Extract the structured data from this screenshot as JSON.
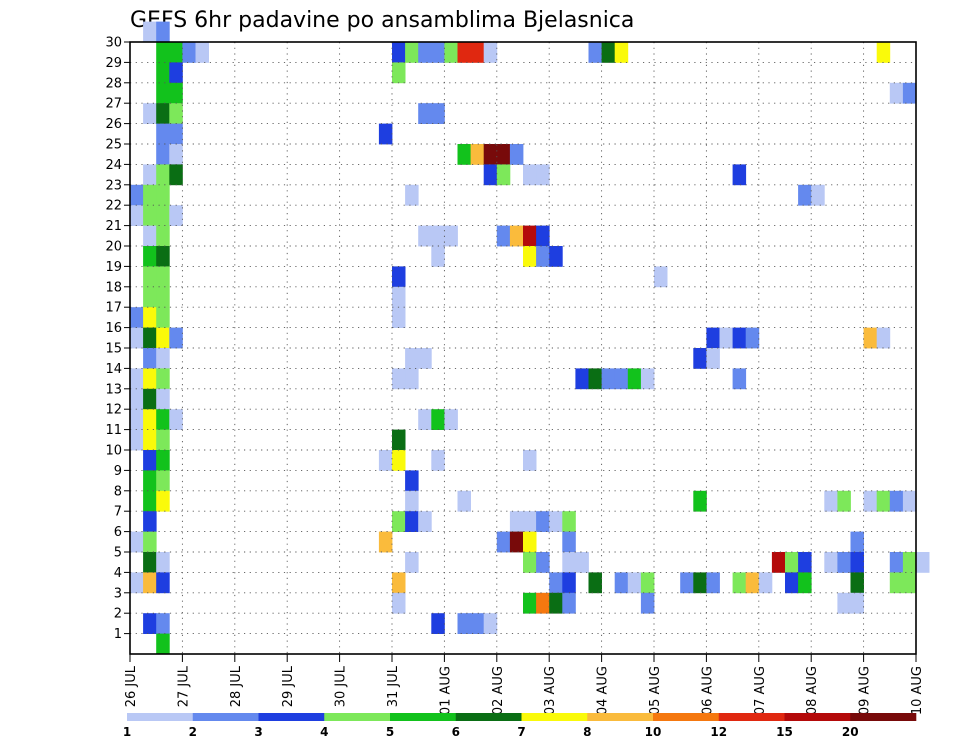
{
  "chart_data": {
    "type": "heatmap",
    "title": "GEFS 6hr padavine po ansamblima Bjelasnica",
    "xlabel": "",
    "ylabel": "",
    "x_ticks": [
      "26 JUL",
      "27 JUL",
      "28 JUL",
      "29 JUL",
      "30 JUL",
      "31 JUL",
      "01 AUG",
      "02 AUG",
      "03 AUG",
      "04 AUG",
      "05 AUG",
      "06 AUG",
      "07 AUG",
      "08 AUG",
      "09 AUG",
      "10 AUG"
    ],
    "y_ticks": [
      1,
      2,
      3,
      4,
      5,
      6,
      7,
      8,
      9,
      10,
      11,
      12,
      13,
      14,
      15,
      16,
      17,
      18,
      19,
      20,
      21,
      22,
      23,
      24,
      25,
      26,
      27,
      28,
      29,
      30
    ],
    "y_range": [
      0,
      30
    ],
    "time_step_hours": 6,
    "grid": true,
    "colorbar": {
      "position": "bottom",
      "levels": [
        "1",
        "2",
        "3",
        "4",
        "5",
        "6",
        "7",
        "8",
        "10",
        "12",
        "15",
        "20"
      ],
      "colors": [
        "#b9c8f5",
        "#6489ee",
        "#1e3ee0",
        "#7de85a",
        "#12c21c",
        "#0a6e14",
        "#fafa0a",
        "#fabb3c",
        "#f5780f",
        "#e02810",
        "#b40a0a",
        "#780a0a"
      ]
    },
    "cells": [
      {
        "t": 1,
        "m": 30,
        "c": 0
      },
      {
        "t": 2,
        "m": 30,
        "c": 1
      },
      {
        "t": 2,
        "m": 29,
        "c": 4
      },
      {
        "t": 3,
        "m": 29,
        "c": 4
      },
      {
        "t": 4,
        "m": 29,
        "c": 1
      },
      {
        "t": 5,
        "m": 29,
        "c": 0
      },
      {
        "t": 20,
        "m": 29,
        "c": 2
      },
      {
        "t": 21,
        "m": 29,
        "c": 3
      },
      {
        "t": 22,
        "m": 29,
        "c": 1
      },
      {
        "t": 23,
        "m": 29,
        "c": 1
      },
      {
        "t": 24,
        "m": 29,
        "c": 3
      },
      {
        "t": 25,
        "m": 29,
        "c": 9
      },
      {
        "t": 26,
        "m": 29,
        "c": 9
      },
      {
        "t": 27,
        "m": 29,
        "c": 0
      },
      {
        "t": 35,
        "m": 29,
        "c": 1
      },
      {
        "t": 36,
        "m": 29,
        "c": 5
      },
      {
        "t": 37,
        "m": 29,
        "c": 6
      },
      {
        "t": 57,
        "m": 29,
        "c": 6
      },
      {
        "t": 2,
        "m": 28,
        "c": 4
      },
      {
        "t": 3,
        "m": 28,
        "c": 2
      },
      {
        "t": 20,
        "m": 28,
        "c": 3
      },
      {
        "t": 2,
        "m": 27,
        "c": 4
      },
      {
        "t": 3,
        "m": 27,
        "c": 4
      },
      {
        "t": 58,
        "m": 27,
        "c": 0
      },
      {
        "t": 59,
        "m": 27,
        "c": 1
      },
      {
        "t": 1,
        "m": 26,
        "c": 0
      },
      {
        "t": 2,
        "m": 26,
        "c": 5
      },
      {
        "t": 3,
        "m": 26,
        "c": 3
      },
      {
        "t": 22,
        "m": 26,
        "c": 1
      },
      {
        "t": 23,
        "m": 26,
        "c": 1
      },
      {
        "t": 2,
        "m": 25,
        "c": 1
      },
      {
        "t": 3,
        "m": 25,
        "c": 1
      },
      {
        "t": 19,
        "m": 25,
        "c": 2
      },
      {
        "t": 2,
        "m": 24,
        "c": 1
      },
      {
        "t": 3,
        "m": 24,
        "c": 0
      },
      {
        "t": 25,
        "m": 24,
        "c": 4
      },
      {
        "t": 26,
        "m": 24,
        "c": 7
      },
      {
        "t": 27,
        "m": 24,
        "c": 11
      },
      {
        "t": 28,
        "m": 24,
        "c": 11
      },
      {
        "t": 29,
        "m": 24,
        "c": 1
      },
      {
        "t": 1,
        "m": 23,
        "c": 0
      },
      {
        "t": 2,
        "m": 23,
        "c": 3
      },
      {
        "t": 3,
        "m": 23,
        "c": 5
      },
      {
        "t": 27,
        "m": 23,
        "c": 2
      },
      {
        "t": 28,
        "m": 23,
        "c": 3
      },
      {
        "t": 30,
        "m": 23,
        "c": 0
      },
      {
        "t": 31,
        "m": 23,
        "c": 0
      },
      {
        "t": 46,
        "m": 23,
        "c": 2
      },
      {
        "t": 0,
        "m": 22,
        "c": 1
      },
      {
        "t": 1,
        "m": 22,
        "c": 3
      },
      {
        "t": 2,
        "m": 22,
        "c": 3
      },
      {
        "t": 21,
        "m": 22,
        "c": 0
      },
      {
        "t": 51,
        "m": 22,
        "c": 1
      },
      {
        "t": 52,
        "m": 22,
        "c": 0
      },
      {
        "t": 0,
        "m": 21,
        "c": 0
      },
      {
        "t": 1,
        "m": 21,
        "c": 3
      },
      {
        "t": 2,
        "m": 21,
        "c": 3
      },
      {
        "t": 3,
        "m": 21,
        "c": 0
      },
      {
        "t": 1,
        "m": 20,
        "c": 0
      },
      {
        "t": 2,
        "m": 20,
        "c": 3
      },
      {
        "t": 22,
        "m": 20,
        "c": 0
      },
      {
        "t": 23,
        "m": 20,
        "c": 0
      },
      {
        "t": 24,
        "m": 20,
        "c": 0
      },
      {
        "t": 28,
        "m": 20,
        "c": 1
      },
      {
        "t": 29,
        "m": 20,
        "c": 7
      },
      {
        "t": 30,
        "m": 20,
        "c": 10
      },
      {
        "t": 31,
        "m": 20,
        "c": 2
      },
      {
        "t": 1,
        "m": 19,
        "c": 4
      },
      {
        "t": 2,
        "m": 19,
        "c": 5
      },
      {
        "t": 23,
        "m": 19,
        "c": 0
      },
      {
        "t": 30,
        "m": 19,
        "c": 6
      },
      {
        "t": 31,
        "m": 19,
        "c": 1
      },
      {
        "t": 32,
        "m": 19,
        "c": 2
      },
      {
        "t": 1,
        "m": 18,
        "c": 3
      },
      {
        "t": 2,
        "m": 18,
        "c": 3
      },
      {
        "t": 20,
        "m": 18,
        "c": 2
      },
      {
        "t": 40,
        "m": 18,
        "c": 0
      },
      {
        "t": 1,
        "m": 17,
        "c": 3
      },
      {
        "t": 2,
        "m": 17,
        "c": 3
      },
      {
        "t": 20,
        "m": 17,
        "c": 0
      },
      {
        "t": 0,
        "m": 16,
        "c": 1
      },
      {
        "t": 1,
        "m": 16,
        "c": 6
      },
      {
        "t": 2,
        "m": 16,
        "c": 3
      },
      {
        "t": 20,
        "m": 16,
        "c": 0
      },
      {
        "t": 0,
        "m": 15,
        "c": 0
      },
      {
        "t": 1,
        "m": 15,
        "c": 5
      },
      {
        "t": 2,
        "m": 15,
        "c": 6
      },
      {
        "t": 3,
        "m": 15,
        "c": 1
      },
      {
        "t": 44,
        "m": 15,
        "c": 2
      },
      {
        "t": 45,
        "m": 15,
        "c": 0
      },
      {
        "t": 46,
        "m": 15,
        "c": 2
      },
      {
        "t": 47,
        "m": 15,
        "c": 1
      },
      {
        "t": 56,
        "m": 15,
        "c": 7
      },
      {
        "t": 57,
        "m": 15,
        "c": 0
      },
      {
        "t": 1,
        "m": 14,
        "c": 1
      },
      {
        "t": 2,
        "m": 14,
        "c": 0
      },
      {
        "t": 21,
        "m": 14,
        "c": 0
      },
      {
        "t": 22,
        "m": 14,
        "c": 0
      },
      {
        "t": 43,
        "m": 14,
        "c": 2
      },
      {
        "t": 44,
        "m": 14,
        "c": 0
      },
      {
        "t": 0,
        "m": 13,
        "c": 0
      },
      {
        "t": 1,
        "m": 13,
        "c": 6
      },
      {
        "t": 2,
        "m": 13,
        "c": 3
      },
      {
        "t": 20,
        "m": 13,
        "c": 0
      },
      {
        "t": 21,
        "m": 13,
        "c": 0
      },
      {
        "t": 34,
        "m": 13,
        "c": 2
      },
      {
        "t": 35,
        "m": 13,
        "c": 5
      },
      {
        "t": 36,
        "m": 13,
        "c": 1
      },
      {
        "t": 37,
        "m": 13,
        "c": 1
      },
      {
        "t": 38,
        "m": 13,
        "c": 4
      },
      {
        "t": 39,
        "m": 13,
        "c": 0
      },
      {
        "t": 46,
        "m": 13,
        "c": 1
      },
      {
        "t": 0,
        "m": 12,
        "c": 0
      },
      {
        "t": 1,
        "m": 12,
        "c": 5
      },
      {
        "t": 2,
        "m": 12,
        "c": 0
      },
      {
        "t": 0,
        "m": 11,
        "c": 0
      },
      {
        "t": 1,
        "m": 11,
        "c": 6
      },
      {
        "t": 2,
        "m": 11,
        "c": 4
      },
      {
        "t": 3,
        "m": 11,
        "c": 0
      },
      {
        "t": 22,
        "m": 11,
        "c": 0
      },
      {
        "t": 23,
        "m": 11,
        "c": 4
      },
      {
        "t": 24,
        "m": 11,
        "c": 0
      },
      {
        "t": 0,
        "m": 10,
        "c": 0
      },
      {
        "t": 1,
        "m": 10,
        "c": 6
      },
      {
        "t": 2,
        "m": 10,
        "c": 3
      },
      {
        "t": 20,
        "m": 10,
        "c": 5
      },
      {
        "t": 1,
        "m": 9,
        "c": 2
      },
      {
        "t": 2,
        "m": 9,
        "c": 4
      },
      {
        "t": 19,
        "m": 9,
        "c": 0
      },
      {
        "t": 20,
        "m": 9,
        "c": 6
      },
      {
        "t": 23,
        "m": 9,
        "c": 0
      },
      {
        "t": 30,
        "m": 9,
        "c": 0
      },
      {
        "t": 1,
        "m": 8,
        "c": 4
      },
      {
        "t": 2,
        "m": 8,
        "c": 3
      },
      {
        "t": 21,
        "m": 8,
        "c": 2
      },
      {
        "t": 1,
        "m": 7,
        "c": 4
      },
      {
        "t": 2,
        "m": 7,
        "c": 6
      },
      {
        "t": 21,
        "m": 7,
        "c": 0
      },
      {
        "t": 25,
        "m": 7,
        "c": 0
      },
      {
        "t": 43,
        "m": 7,
        "c": 4
      },
      {
        "t": 53,
        "m": 7,
        "c": 0
      },
      {
        "t": 54,
        "m": 7,
        "c": 3
      },
      {
        "t": 56,
        "m": 7,
        "c": 0
      },
      {
        "t": 57,
        "m": 7,
        "c": 3
      },
      {
        "t": 58,
        "m": 7,
        "c": 1
      },
      {
        "t": 59,
        "m": 7,
        "c": 0
      },
      {
        "t": 1,
        "m": 6,
        "c": 2
      },
      {
        "t": 20,
        "m": 6,
        "c": 3
      },
      {
        "t": 21,
        "m": 6,
        "c": 2
      },
      {
        "t": 22,
        "m": 6,
        "c": 0
      },
      {
        "t": 29,
        "m": 6,
        "c": 0
      },
      {
        "t": 30,
        "m": 6,
        "c": 0
      },
      {
        "t": 31,
        "m": 6,
        "c": 1
      },
      {
        "t": 32,
        "m": 6,
        "c": 0
      },
      {
        "t": 33,
        "m": 6,
        "c": 3
      },
      {
        "t": 0,
        "m": 5,
        "c": 0
      },
      {
        "t": 1,
        "m": 5,
        "c": 3
      },
      {
        "t": 19,
        "m": 5,
        "c": 7
      },
      {
        "t": 28,
        "m": 5,
        "c": 1
      },
      {
        "t": 29,
        "m": 5,
        "c": 11
      },
      {
        "t": 30,
        "m": 5,
        "c": 6
      },
      {
        "t": 33,
        "m": 5,
        "c": 1
      },
      {
        "t": 55,
        "m": 5,
        "c": 1
      },
      {
        "t": 1,
        "m": 4,
        "c": 5
      },
      {
        "t": 2,
        "m": 4,
        "c": 0
      },
      {
        "t": 21,
        "m": 4,
        "c": 0
      },
      {
        "t": 30,
        "m": 4,
        "c": 3
      },
      {
        "t": 31,
        "m": 4,
        "c": 1
      },
      {
        "t": 33,
        "m": 4,
        "c": 0
      },
      {
        "t": 34,
        "m": 4,
        "c": 0
      },
      {
        "t": 49,
        "m": 4,
        "c": 10
      },
      {
        "t": 50,
        "m": 4,
        "c": 3
      },
      {
        "t": 51,
        "m": 4,
        "c": 2
      },
      {
        "t": 53,
        "m": 4,
        "c": 0
      },
      {
        "t": 54,
        "m": 4,
        "c": 1
      },
      {
        "t": 55,
        "m": 4,
        "c": 2
      },
      {
        "t": 58,
        "m": 4,
        "c": 1
      },
      {
        "t": 59,
        "m": 4,
        "c": 3
      },
      {
        "t": 60,
        "m": 4,
        "c": 0
      },
      {
        "t": 0,
        "m": 3,
        "c": 0
      },
      {
        "t": 1,
        "m": 3,
        "c": 7
      },
      {
        "t": 2,
        "m": 3,
        "c": 2
      },
      {
        "t": 20,
        "m": 3,
        "c": 7
      },
      {
        "t": 32,
        "m": 3,
        "c": 1
      },
      {
        "t": 33,
        "m": 3,
        "c": 2
      },
      {
        "t": 35,
        "m": 3,
        "c": 5
      },
      {
        "t": 37,
        "m": 3,
        "c": 1
      },
      {
        "t": 38,
        "m": 3,
        "c": 0
      },
      {
        "t": 39,
        "m": 3,
        "c": 3
      },
      {
        "t": 42,
        "m": 3,
        "c": 1
      },
      {
        "t": 43,
        "m": 3,
        "c": 5
      },
      {
        "t": 44,
        "m": 3,
        "c": 1
      },
      {
        "t": 46,
        "m": 3,
        "c": 3
      },
      {
        "t": 47,
        "m": 3,
        "c": 7
      },
      {
        "t": 48,
        "m": 3,
        "c": 0
      },
      {
        "t": 50,
        "m": 3,
        "c": 2
      },
      {
        "t": 51,
        "m": 3,
        "c": 4
      },
      {
        "t": 55,
        "m": 3,
        "c": 5
      },
      {
        "t": 58,
        "m": 3,
        "c": 3
      },
      {
        "t": 59,
        "m": 3,
        "c": 3
      },
      {
        "t": 20,
        "m": 2,
        "c": 0
      },
      {
        "t": 30,
        "m": 2,
        "c": 4
      },
      {
        "t": 31,
        "m": 2,
        "c": 8
      },
      {
        "t": 32,
        "m": 2,
        "c": 5
      },
      {
        "t": 33,
        "m": 2,
        "c": 1
      },
      {
        "t": 39,
        "m": 2,
        "c": 1
      },
      {
        "t": 54,
        "m": 2,
        "c": 0
      },
      {
        "t": 55,
        "m": 2,
        "c": 0
      },
      {
        "t": 1,
        "m": 1,
        "c": 2
      },
      {
        "t": 2,
        "m": 1,
        "c": 1
      },
      {
        "t": 23,
        "m": 1,
        "c": 2
      },
      {
        "t": 25,
        "m": 1,
        "c": 1
      },
      {
        "t": 26,
        "m": 1,
        "c": 1
      },
      {
        "t": 27,
        "m": 1,
        "c": 0
      },
      {
        "t": 2,
        "m": 0,
        "c": 4
      }
    ]
  }
}
